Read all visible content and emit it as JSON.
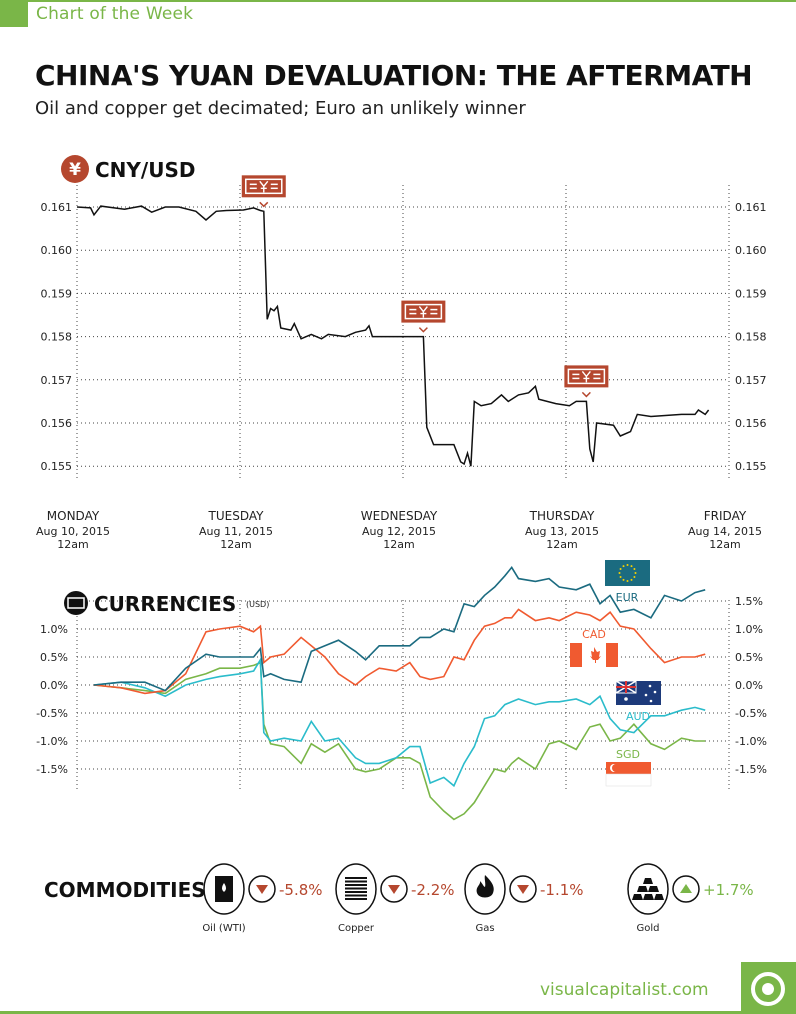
{
  "header": {
    "kicker": "Chart of the Week",
    "title": "CHINA'S YUAN DEVALUATION: THE AFTERMATH",
    "subtitle": "Oil and copper get decimated; Euro an unlikely winner"
  },
  "colors": {
    "brand": "#7ab648",
    "marker": "#b5472e",
    "EUR": "#1b6b80",
    "CAD": "#f05a30",
    "AUD": "#2bbccb",
    "SGD": "#7ab648",
    "down": "#b5472e",
    "up": "#7ab648"
  },
  "days": [
    {
      "name": "MONDAY",
      "date": "Aug 10, 2015",
      "time": "12am"
    },
    {
      "name": "TUESDAY",
      "date": "Aug 11, 2015",
      "time": "12am"
    },
    {
      "name": "WEDNESDAY",
      "date": "Aug 12, 2015",
      "time": "12am"
    },
    {
      "name": "THURSDAY",
      "date": "Aug 13, 2015",
      "time": "12am"
    },
    {
      "name": "FRIDAY",
      "date": "Aug 14, 2015",
      "time": "12am"
    }
  ],
  "chart_data": [
    {
      "type": "line",
      "title": "CNY/USD",
      "title_icon": "yuan-icon",
      "xlim": [
        "2015-08-10T00:00",
        "2015-08-14T00:00"
      ],
      "ylim": [
        0.155,
        0.161
      ],
      "yticks": [
        "0.161",
        "0.160",
        "0.159",
        "0.158",
        "0.157",
        "0.156",
        "0.155"
      ],
      "grid": true,
      "annotations": [
        {
          "type": "devaluation-banknote-icon",
          "x": "2015-08-11T03:30"
        },
        {
          "type": "devaluation-banknote-icon",
          "x": "2015-08-12T03:00"
        },
        {
          "type": "devaluation-banknote-icon",
          "x": "2015-08-13T03:00"
        }
      ],
      "series": [
        {
          "color": "#111111",
          "points": [
            [
              "2015-08-10T00:00",
              0.161
            ],
            [
              "2015-08-10T02:00",
              0.16098
            ],
            [
              "2015-08-10T02:30",
              0.16082
            ],
            [
              "2015-08-10T03:30",
              0.16102
            ],
            [
              "2015-08-10T07:00",
              0.16095
            ],
            [
              "2015-08-10T09:30",
              0.16102
            ],
            [
              "2015-08-10T11:00",
              0.16088
            ],
            [
              "2015-08-10T13:00",
              0.161
            ],
            [
              "2015-08-10T15:00",
              0.161
            ],
            [
              "2015-08-10T17:30",
              0.1609
            ],
            [
              "2015-08-10T19:00",
              0.1607
            ],
            [
              "2015-08-10T20:30",
              0.1609
            ],
            [
              "2015-08-10T22:00",
              0.16092
            ],
            [
              "2015-08-11T00:30",
              0.16093
            ],
            [
              "2015-08-11T02:00",
              0.16098
            ],
            [
              "2015-08-11T03:00",
              0.16092
            ],
            [
              "2015-08-11T03:30",
              0.1609
            ],
            [
              "2015-08-11T04:00",
              0.1584
            ],
            [
              "2015-08-11T04:30",
              0.15865
            ],
            [
              "2015-08-11T05:00",
              0.1586
            ],
            [
              "2015-08-11T05:30",
              0.1587
            ],
            [
              "2015-08-11T06:00",
              0.1582
            ],
            [
              "2015-08-11T07:30",
              0.15815
            ],
            [
              "2015-08-11T08:00",
              0.1583
            ],
            [
              "2015-08-11T09:00",
              0.15795
            ],
            [
              "2015-08-11T10:30",
              0.15805
            ],
            [
              "2015-08-11T12:00",
              0.15795
            ],
            [
              "2015-08-11T13:00",
              0.15805
            ],
            [
              "2015-08-11T15:30",
              0.158
            ],
            [
              "2015-08-11T17:00",
              0.1581
            ],
            [
              "2015-08-11T18:30",
              0.15815
            ],
            [
              "2015-08-11T19:00",
              0.15825
            ],
            [
              "2015-08-11T19:30",
              0.158
            ],
            [
              "2015-08-11T23:30",
              0.158
            ],
            [
              "2015-08-12T03:00",
              0.158
            ],
            [
              "2015-08-12T03:30",
              0.1559
            ],
            [
              "2015-08-12T04:30",
              0.1555
            ],
            [
              "2015-08-12T07:30",
              0.1555
            ],
            [
              "2015-08-12T08:30",
              0.1551
            ],
            [
              "2015-08-12T09:00",
              0.15505
            ],
            [
              "2015-08-12T09:30",
              0.1553
            ],
            [
              "2015-08-12T10:00",
              0.155
            ],
            [
              "2015-08-12T10:30",
              0.1565
            ],
            [
              "2015-08-12T11:30",
              0.1564
            ],
            [
              "2015-08-12T13:00",
              0.15645
            ],
            [
              "2015-08-12T14:30",
              0.15665
            ],
            [
              "2015-08-12T15:30",
              0.1565
            ],
            [
              "2015-08-12T17:00",
              0.15665
            ],
            [
              "2015-08-12T18:30",
              0.1567
            ],
            [
              "2015-08-12T19:30",
              0.15685
            ],
            [
              "2015-08-12T20:00",
              0.15655
            ],
            [
              "2015-08-12T22:30",
              0.15645
            ],
            [
              "2015-08-13T00:30",
              0.1564
            ],
            [
              "2015-08-13T01:30",
              0.1565
            ],
            [
              "2015-08-13T03:00",
              0.1565
            ],
            [
              "2015-08-13T03:30",
              0.1554
            ],
            [
              "2015-08-13T04:00",
              0.1551
            ],
            [
              "2015-08-13T04:30",
              0.156
            ],
            [
              "2015-08-13T07:00",
              0.15595
            ],
            [
              "2015-08-13T08:00",
              0.1557
            ],
            [
              "2015-08-13T09:30",
              0.1558
            ],
            [
              "2015-08-13T10:30",
              0.1562
            ],
            [
              "2015-08-13T12:30",
              0.15615
            ],
            [
              "2015-08-13T17:00",
              0.1562
            ],
            [
              "2015-08-13T19:00",
              0.1562
            ],
            [
              "2015-08-13T19:30",
              0.1563
            ],
            [
              "2015-08-13T20:30",
              0.1562
            ],
            [
              "2015-08-13T21:00",
              0.1563
            ]
          ]
        }
      ]
    },
    {
      "type": "line",
      "title": "CURRENCIES",
      "unit": "(USD)",
      "title_icon": "banknote-icon",
      "xlim": [
        "2015-08-10T00:00",
        "2015-08-14T00:00"
      ],
      "ylim": [
        -2.5,
        2.1
      ],
      "yticks_left": [
        "1.0%",
        "0.5%",
        "0.0%",
        "-0.5%",
        "-1.0%",
        "-1.5%"
      ],
      "yticks_right": [
        "1.5%",
        "1.0%",
        "0.5%",
        "0.0%",
        "-0.5%",
        "-1.0%",
        "-1.5%"
      ],
      "grid": true,
      "x": [
        "2015-08-10T02:30",
        "2015-08-10T06:30",
        "2015-08-10T10:00",
        "2015-08-10T13:00",
        "2015-08-10T16:00",
        "2015-08-10T19:00",
        "2015-08-10T21:00",
        "2015-08-11T00:00",
        "2015-08-11T02:00",
        "2015-08-11T03:00",
        "2015-08-11T03:30",
        "2015-08-11T04:30",
        "2015-08-11T06:30",
        "2015-08-11T09:00",
        "2015-08-11T10:30",
        "2015-08-11T12:30",
        "2015-08-11T14:30",
        "2015-08-11T17:00",
        "2015-08-11T18:30",
        "2015-08-11T20:30",
        "2015-08-11T23:00",
        "2015-08-12T01:00",
        "2015-08-12T02:30",
        "2015-08-12T04:00",
        "2015-08-12T06:00",
        "2015-08-12T07:30",
        "2015-08-12T09:00",
        "2015-08-12T10:30",
        "2015-08-12T12:00",
        "2015-08-12T13:30",
        "2015-08-12T15:00",
        "2015-08-12T16:00",
        "2015-08-12T17:00",
        "2015-08-12T19:30",
        "2015-08-12T21:30",
        "2015-08-12T23:00",
        "2015-08-13T01:30",
        "2015-08-13T03:30",
        "2015-08-13T05:00",
        "2015-08-13T06:30",
        "2015-08-13T08:00",
        "2015-08-13T10:00",
        "2015-08-13T12:30",
        "2015-08-13T14:30",
        "2015-08-13T17:00",
        "2015-08-13T19:00",
        "2015-08-13T20:30"
      ],
      "series": [
        {
          "name": "EUR",
          "flag": "eu-flag",
          "values": [
            0,
            0.05,
            0.05,
            -0.1,
            0.3,
            0.55,
            0.5,
            0.5,
            0.5,
            0.65,
            0.15,
            0.2,
            0.1,
            0.05,
            0.6,
            0.7,
            0.8,
            0.6,
            0.45,
            0.7,
            0.7,
            0.7,
            0.85,
            0.85,
            1.0,
            0.95,
            1.45,
            1.4,
            1.6,
            1.75,
            1.95,
            2.1,
            1.9,
            1.85,
            1.9,
            1.75,
            1.7,
            1.8,
            1.45,
            1.6,
            1.3,
            1.35,
            1.2,
            1.6,
            1.5,
            1.65,
            1.7
          ]
        },
        {
          "name": "CAD",
          "flag": "canada-flag",
          "values": [
            0,
            -0.05,
            -0.15,
            -0.1,
            0.2,
            0.95,
            1.0,
            1.05,
            0.95,
            1.05,
            0.4,
            0.5,
            0.55,
            0.85,
            0.7,
            0.5,
            0.2,
            0.0,
            0.15,
            0.3,
            0.25,
            0.4,
            0.15,
            0.1,
            0.15,
            0.5,
            0.45,
            0.8,
            1.05,
            1.1,
            1.2,
            1.2,
            1.35,
            1.15,
            1.2,
            1.15,
            1.3,
            1.25,
            1.15,
            1.3,
            1.05,
            1.0,
            0.65,
            0.4,
            0.5,
            0.5,
            0.55
          ]
        },
        {
          "name": "AUD",
          "flag": "australia-flag",
          "values": [
            0,
            0.05,
            -0.05,
            -0.2,
            0.0,
            0.1,
            0.15,
            0.2,
            0.25,
            0.45,
            -0.85,
            -1.0,
            -0.95,
            -1.0,
            -0.65,
            -1.0,
            -0.95,
            -1.3,
            -1.4,
            -1.4,
            -1.3,
            -1.1,
            -1.1,
            -1.75,
            -1.65,
            -1.8,
            -1.4,
            -1.1,
            -0.6,
            -0.55,
            -0.35,
            -0.3,
            -0.25,
            -0.35,
            -0.3,
            -0.3,
            -0.25,
            -0.35,
            -0.2,
            -0.6,
            -0.8,
            -0.85,
            -0.55,
            -0.55,
            -0.45,
            -0.4,
            -0.45
          ]
        },
        {
          "name": "SGD",
          "flag": "singapore-flag",
          "values": [
            0,
            -0.05,
            -0.1,
            -0.15,
            0.1,
            0.2,
            0.3,
            0.3,
            0.35,
            0.4,
            -0.7,
            -1.05,
            -1.1,
            -1.4,
            -1.05,
            -1.2,
            -1.05,
            -1.5,
            -1.55,
            -1.5,
            -1.3,
            -1.3,
            -1.4,
            -2.0,
            -2.25,
            -2.4,
            -2.3,
            -2.1,
            -1.8,
            -1.5,
            -1.55,
            -1.4,
            -1.3,
            -1.5,
            -1.05,
            -1.0,
            -1.15,
            -0.75,
            -0.7,
            -1.0,
            -0.95,
            -0.7,
            -1.05,
            -1.15,
            -0.95,
            -1.0,
            -1.0
          ]
        }
      ]
    }
  ],
  "commodities": {
    "heading": "COMMODITIES",
    "items": [
      {
        "name": "Oil (WTI)",
        "icon": "oil-barrel-icon",
        "change": "-5.8%",
        "direction": "down"
      },
      {
        "name": "Copper",
        "icon": "copper-coil-icon",
        "change": "-2.2%",
        "direction": "down"
      },
      {
        "name": "Gas",
        "icon": "flame-icon",
        "change": "-1.1%",
        "direction": "down"
      },
      {
        "name": "Gold",
        "icon": "gold-bars-icon",
        "change": "+1.7%",
        "direction": "up"
      }
    ]
  },
  "footer": {
    "url": "visualcapitalist.com"
  }
}
